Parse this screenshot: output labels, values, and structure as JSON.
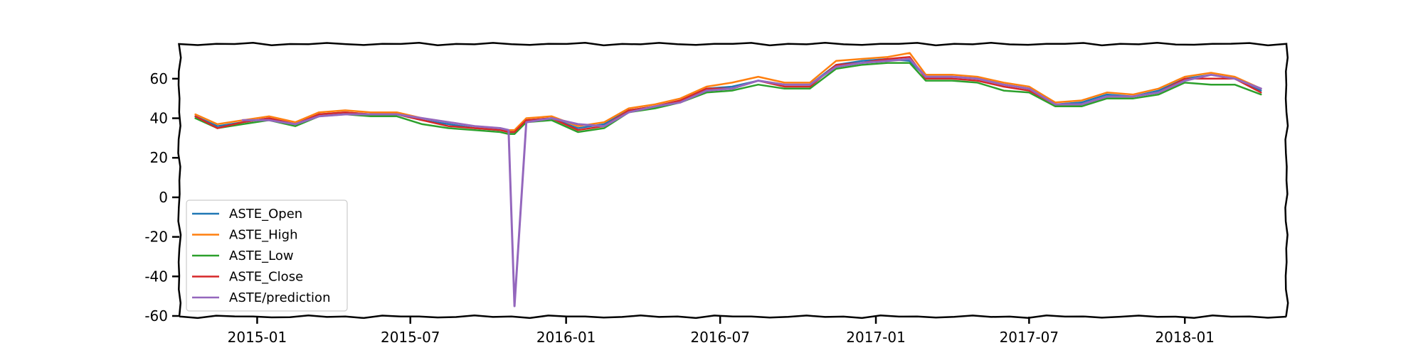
{
  "chart_data": {
    "type": "line",
    "title": "",
    "xlabel": "",
    "ylabel": "",
    "x_range": [
      "2014-10-01",
      "2018-05-01"
    ],
    "ylim": [
      -60,
      70
    ],
    "x_ticks": [
      {
        "date": "2015-01-01",
        "label": "2015-01"
      },
      {
        "date": "2015-07-01",
        "label": "2015-07"
      },
      {
        "date": "2016-01-01",
        "label": "2016-01"
      },
      {
        "date": "2016-07-01",
        "label": "2016-07"
      },
      {
        "date": "2017-01-01",
        "label": "2017-01"
      },
      {
        "date": "2017-07-01",
        "label": "2017-07"
      },
      {
        "date": "2018-01-01",
        "label": "2018-01"
      }
    ],
    "y_ticks": [
      {
        "value": 60,
        "label": "60"
      },
      {
        "value": 40,
        "label": "40"
      },
      {
        "value": 20,
        "label": "20"
      },
      {
        "value": 0,
        "label": "0"
      },
      {
        "value": -20,
        "label": "-20"
      },
      {
        "value": -40,
        "label": "-40"
      },
      {
        "value": -60,
        "label": "-60"
      }
    ],
    "grid": false,
    "legend_position": "lower-left",
    "x": [
      "2014-10-20",
      "2014-11-15",
      "2014-12-15",
      "2015-01-15",
      "2015-02-15",
      "2015-03-15",
      "2015-04-15",
      "2015-05-15",
      "2015-06-15",
      "2015-07-15",
      "2015-08-15",
      "2015-09-15",
      "2015-10-15",
      "2015-10-25",
      "2015-11-01",
      "2015-11-15",
      "2015-12-15",
      "2016-01-15",
      "2016-02-15",
      "2016-03-15",
      "2016-04-15",
      "2016-05-15",
      "2016-06-15",
      "2016-07-15",
      "2016-08-15",
      "2016-09-15",
      "2016-10-15",
      "2016-11-15",
      "2016-12-15",
      "2017-01-15",
      "2017-02-10",
      "2017-03-01",
      "2017-04-01",
      "2017-05-01",
      "2017-06-01",
      "2017-07-01",
      "2017-08-01",
      "2017-09-01",
      "2017-10-01",
      "2017-11-01",
      "2017-12-01",
      "2018-01-01",
      "2018-02-01",
      "2018-03-01",
      "2018-04-01"
    ],
    "series": [
      {
        "name": "ASTE_Open",
        "color": "#1f77b4",
        "values": [
          41,
          36,
          38,
          40,
          37,
          42,
          43,
          42,
          42,
          39,
          37,
          35,
          34,
          33,
          33,
          39,
          40,
          35,
          37,
          44,
          46,
          49,
          55,
          56,
          59,
          57,
          57,
          67,
          69,
          70,
          69,
          61,
          61,
          60,
          57,
          55,
          47,
          48,
          52,
          51,
          54,
          60,
          62,
          60,
          54
        ]
      },
      {
        "name": "ASTE_High",
        "color": "#ff7f0e",
        "values": [
          42,
          37,
          39,
          41,
          38,
          43,
          44,
          43,
          43,
          40,
          38,
          36,
          35,
          34,
          34,
          40,
          41,
          36,
          38,
          45,
          47,
          50,
          56,
          58,
          61,
          58,
          58,
          69,
          70,
          71,
          73,
          62,
          62,
          61,
          58,
          56,
          48,
          49,
          53,
          52,
          55,
          61,
          63,
          61,
          55
        ]
      },
      {
        "name": "ASTE_Low",
        "color": "#2ca02c",
        "values": [
          40,
          35,
          37,
          39,
          36,
          41,
          42,
          41,
          41,
          37,
          35,
          34,
          33,
          32,
          32,
          38,
          39,
          33,
          35,
          43,
          45,
          48,
          53,
          54,
          57,
          55,
          55,
          65,
          67,
          68,
          68,
          59,
          59,
          58,
          54,
          53,
          46,
          46,
          50,
          50,
          52,
          58,
          57,
          57,
          52
        ]
      },
      {
        "name": "ASTE_Close",
        "color": "#d62728",
        "values": [
          41,
          35,
          38,
          40,
          37,
          42,
          43,
          42,
          42,
          39,
          36,
          35,
          34,
          33,
          33,
          39,
          40,
          34,
          36,
          44,
          46,
          49,
          55,
          55,
          59,
          56,
          56,
          67,
          68,
          70,
          71,
          60,
          60,
          59,
          56,
          54,
          47,
          47,
          51,
          51,
          53,
          60,
          60,
          60,
          53
        ]
      },
      {
        "name": "ASTE/prediction",
        "color": "#9467bd",
        "values": [
          null,
          null,
          39,
          39,
          37,
          41,
          42,
          42,
          42,
          40,
          38,
          36,
          35,
          34,
          -55,
          38,
          40,
          37,
          36,
          43,
          46,
          48,
          54,
          55,
          59,
          57,
          57,
          66,
          68,
          69,
          70,
          61,
          61,
          60,
          57,
          55,
          47,
          47,
          51,
          51,
          53,
          59,
          62,
          60,
          55
        ]
      }
    ]
  }
}
